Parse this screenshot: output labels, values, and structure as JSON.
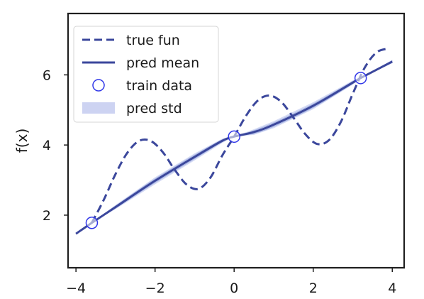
{
  "chart_data": {
    "type": "line",
    "title": "",
    "xlabel": "",
    "ylabel": "f(x)",
    "xlim": [
      -4.2,
      4.3
    ],
    "ylim": [
      0.5,
      7.75
    ],
    "grid": false,
    "legend_position": "top-left",
    "x_ticks": [
      -4,
      -2,
      0,
      2,
      4
    ],
    "x_tick_labels": [
      "−4",
      "−2",
      "0",
      "2",
      "4"
    ],
    "y_ticks": [
      2,
      4,
      6
    ],
    "y_tick_labels": [
      "2",
      "4",
      "6"
    ],
    "colors": {
      "line": "#3b479c",
      "marker_edge": "#2f36e8",
      "std_fill": "#cdd3f2",
      "sample_line": "#7f93d4",
      "axes": "#1f1f1f"
    },
    "series": [
      {
        "name": "true fun",
        "style": "dashed",
        "x": [
          -3.6,
          -3.3,
          -3.0,
          -2.7,
          -2.4,
          -2.1,
          -1.8,
          -1.5,
          -1.2,
          -0.9,
          -0.6,
          -0.3,
          0.0,
          0.3,
          0.6,
          0.9,
          1.2,
          1.5,
          1.8,
          2.1,
          2.4,
          2.7,
          3.0,
          3.3,
          3.6,
          3.9
        ],
        "y": [
          1.78,
          2.43,
          3.17,
          3.78,
          4.12,
          4.11,
          3.79,
          3.29,
          2.87,
          2.75,
          3.07,
          3.7,
          4.24,
          4.83,
          5.27,
          5.41,
          5.22,
          4.78,
          4.31,
          4.03,
          4.14,
          4.66,
          5.46,
          6.2,
          6.64,
          6.75
        ]
      },
      {
        "name": "pred mean",
        "style": "solid",
        "x": [
          -4.0,
          -3.6,
          -3.0,
          -2.0,
          -1.0,
          -0.3,
          0.0,
          0.5,
          1.0,
          2.0,
          3.0,
          3.2,
          4.0
        ],
        "y": [
          1.47,
          1.78,
          2.23,
          2.98,
          3.66,
          4.12,
          4.24,
          4.37,
          4.58,
          5.12,
          5.78,
          5.91,
          6.38
        ]
      },
      {
        "name": "train data",
        "style": "markers",
        "x": [
          -3.6,
          0.0,
          3.2
        ],
        "y": [
          1.78,
          4.24,
          5.91
        ]
      },
      {
        "name": "pred std",
        "style": "band",
        "x": [
          -4.0,
          -3.6,
          -3.0,
          -2.0,
          -1.0,
          -0.3,
          0.0,
          0.5,
          1.0,
          2.0,
          3.0,
          3.2,
          4.0
        ],
        "lower": [
          1.44,
          1.78,
          2.17,
          2.88,
          3.56,
          4.06,
          4.24,
          4.29,
          4.48,
          5.02,
          5.72,
          5.91,
          6.33
        ],
        "upper": [
          1.5,
          1.78,
          2.29,
          3.08,
          3.76,
          4.18,
          4.24,
          4.45,
          4.68,
          5.22,
          5.84,
          5.91,
          6.43
        ]
      }
    ],
    "legend": [
      {
        "label": "true fun",
        "style": "dashed"
      },
      {
        "label": "pred mean",
        "style": "solid"
      },
      {
        "label": "train data",
        "style": "marker"
      },
      {
        "label": "pred std",
        "style": "band"
      }
    ]
  }
}
